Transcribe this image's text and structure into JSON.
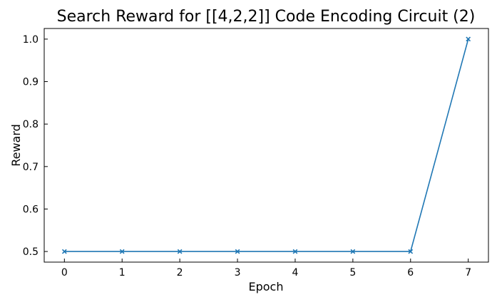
{
  "chart_data": {
    "type": "line",
    "title": "Search Reward for [[4,2,2]] Code Encoding Circuit (2)",
    "xlabel": "Epoch",
    "ylabel": "Reward",
    "x": [
      0,
      1,
      2,
      3,
      4,
      5,
      6,
      7
    ],
    "series": [
      {
        "values": [
          0.5,
          0.5,
          0.5,
          0.5,
          0.5,
          0.5,
          0.5,
          1.0
        ],
        "color": "#1f77b4",
        "marker": "x"
      }
    ],
    "x_ticks": [
      "0",
      "1",
      "2",
      "3",
      "4",
      "5",
      "6",
      "7"
    ],
    "y_ticks": [
      "0.5",
      "0.6",
      "0.7",
      "0.8",
      "0.9",
      "1.0"
    ],
    "xlim": [
      -0.35,
      7.35
    ],
    "ylim": [
      0.475,
      1.025
    ],
    "grid": false,
    "legend": "none"
  }
}
